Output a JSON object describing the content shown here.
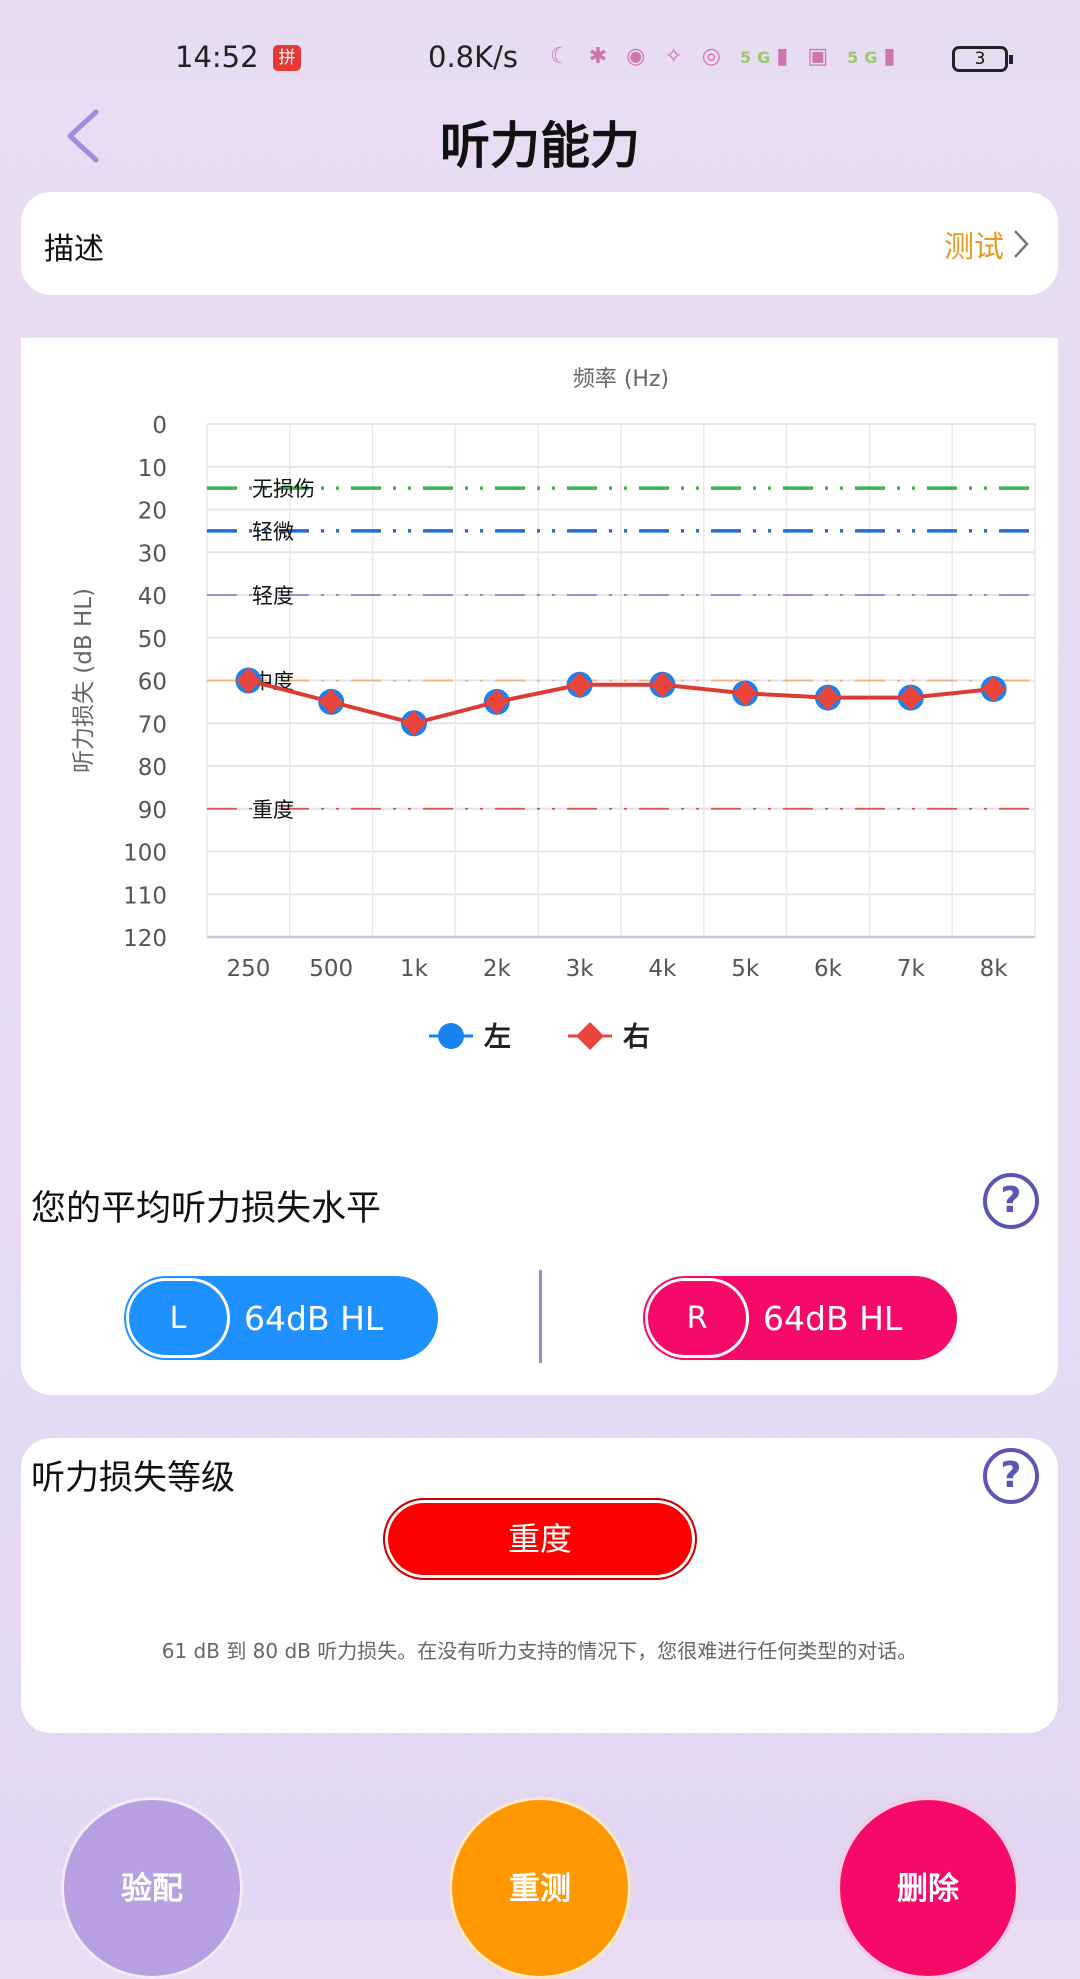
{
  "status_bar": {
    "time": "14:52",
    "input_badge": "拼",
    "speed": "0.8K/s",
    "icons": [
      "moon-icon",
      "bluetooth-icon",
      "nfc-icon",
      "vibrate-icon",
      "alarm-icon",
      "5g-signal-icon",
      "sim-icon",
      "5g-signal-icon"
    ],
    "network": "5G",
    "battery": "3"
  },
  "header": {
    "title": "听力能力"
  },
  "description": {
    "label": "描述",
    "link": "测试"
  },
  "chart_data": {
    "type": "line",
    "title": "频率 (Hz)",
    "ylabel": "听力损失 (dB HL)",
    "categories": [
      "250",
      "500",
      "1k",
      "2k",
      "3k",
      "4k",
      "5k",
      "6k",
      "7k",
      "8k"
    ],
    "yticks": [
      "0",
      "10",
      "20",
      "30",
      "40",
      "50",
      "60",
      "70",
      "80",
      "90",
      "100",
      "110",
      "120"
    ],
    "ylim": [
      0,
      120
    ],
    "y_inverted": true,
    "grid": true,
    "series": [
      {
        "name": "左",
        "color": "#1a82f0",
        "marker": "circle",
        "values": [
          60,
          65,
          70,
          65,
          61,
          61,
          63,
          64,
          64,
          62
        ]
      },
      {
        "name": "右",
        "color": "#e8453c",
        "marker": "diamond",
        "values": [
          60,
          65,
          70,
          65,
          61,
          61,
          63,
          64,
          64,
          62
        ]
      }
    ],
    "reference_lines": [
      {
        "label": "无损伤",
        "value": 15,
        "color": "#3cb44b"
      },
      {
        "label": "轻微",
        "value": 25,
        "color": "#1e6fd0"
      },
      {
        "label": "轻度",
        "value": 40,
        "color": "#8a7fc8"
      },
      {
        "label": "中度",
        "value": 60,
        "color": "#f0b27a"
      },
      {
        "label": "重度",
        "value": 90,
        "color": "#d9534f"
      }
    ],
    "legend": "bottom"
  },
  "average": {
    "title": "您的平均听力损失水平",
    "help": "?",
    "left": {
      "ear": "L",
      "value": "64dB HL",
      "color": "#1e90ff"
    },
    "right": {
      "ear": "R",
      "value": "64dB HL",
      "color": "#f50a6a"
    }
  },
  "level": {
    "title": "听力损失等级",
    "help": "?",
    "badge": "重度",
    "description": "61 dB 到 80 dB 听力损失。在没有听力支持的情况下，您很难进行任何类型的对话。"
  },
  "actions": [
    {
      "label": "验配",
      "color": "#b89fe2"
    },
    {
      "label": "重测",
      "color": "#ff9800"
    },
    {
      "label": "删除",
      "color": "#f50a6a"
    }
  ]
}
